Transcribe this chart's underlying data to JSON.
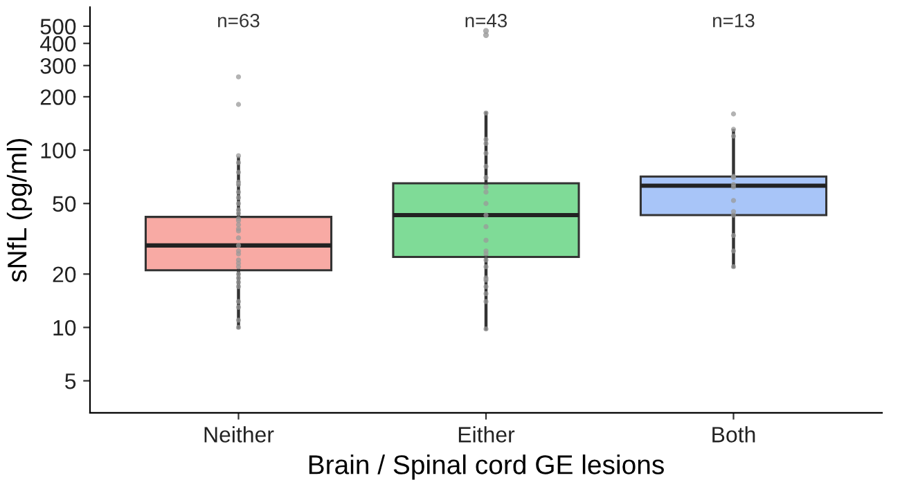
{
  "chart_data": {
    "type": "box",
    "xlabel": "Brain / Spinal cord GE lesions",
    "ylabel": "sNfL (pg/ml)",
    "categories": [
      "Neither",
      "Either",
      "Both"
    ],
    "colors": [
      "#f8aaa4",
      "#7fdb97",
      "#a8c5f8"
    ],
    "boxes": [
      {
        "low": 10,
        "q1": 21,
        "median": 29,
        "q3": 42,
        "high": 90
      },
      {
        "low": 9.8,
        "q1": 25,
        "median": 43,
        "q3": 65,
        "high": 162,
        "outliers": [
          470,
          445
        ]
      },
      {
        "low": 22,
        "q1": 43,
        "median": 63,
        "q3": 71,
        "high": 129
      }
    ],
    "series": [
      {
        "type": "scatter",
        "color": "#9a9a9a",
        "x": [
          "Neither",
          "Neither",
          "Neither",
          "Neither",
          "Neither",
          "Neither",
          "Neither",
          "Neither",
          "Neither",
          "Neither",
          "Neither",
          "Neither",
          "Neither",
          "Neither",
          "Neither",
          "Neither",
          "Neither",
          "Neither",
          "Neither",
          "Neither",
          "Neither",
          "Neither",
          "Neither",
          "Neither",
          "Neither",
          "Neither",
          "Neither",
          "Neither",
          "Neither",
          "Neither",
          "Neither",
          "Neither",
          "Either",
          "Either",
          "Either",
          "Either",
          "Either",
          "Either",
          "Either",
          "Either",
          "Either",
          "Either",
          "Either",
          "Either",
          "Either",
          "Either",
          "Either",
          "Either",
          "Either",
          "Either",
          "Either",
          "Either",
          "Either",
          "Either",
          "Both",
          "Both",
          "Both",
          "Both",
          "Both",
          "Both",
          "Both",
          "Both",
          "Both",
          "Both",
          "Both",
          "Both",
          "Both"
        ],
        "values": [
          259,
          181,
          93,
          85,
          66,
          75,
          64,
          58,
          50,
          54,
          46,
          44,
          41,
          40,
          38,
          36,
          35,
          32,
          29,
          27,
          26,
          24,
          23,
          22,
          20,
          19,
          18,
          17,
          14,
          13,
          11,
          10,
          162,
          115,
          109,
          96,
          81,
          70,
          62,
          58,
          50,
          43,
          37,
          31,
          27,
          26,
          24,
          22,
          19,
          18.5,
          17,
          15.5,
          14,
          9.8,
          160,
          131,
          120,
          70,
          71,
          64,
          62,
          52,
          45,
          43,
          33,
          27,
          22
        ]
      }
    ],
    "annotations": [
      "n=63",
      "n=43",
      "n=13"
    ],
    "log": true,
    "ylim": [
      3.3,
      640
    ],
    "yticks": [
      5,
      10,
      20,
      50,
      100,
      200,
      300,
      400,
      500
    ],
    "grid": false,
    "legend": false
  }
}
